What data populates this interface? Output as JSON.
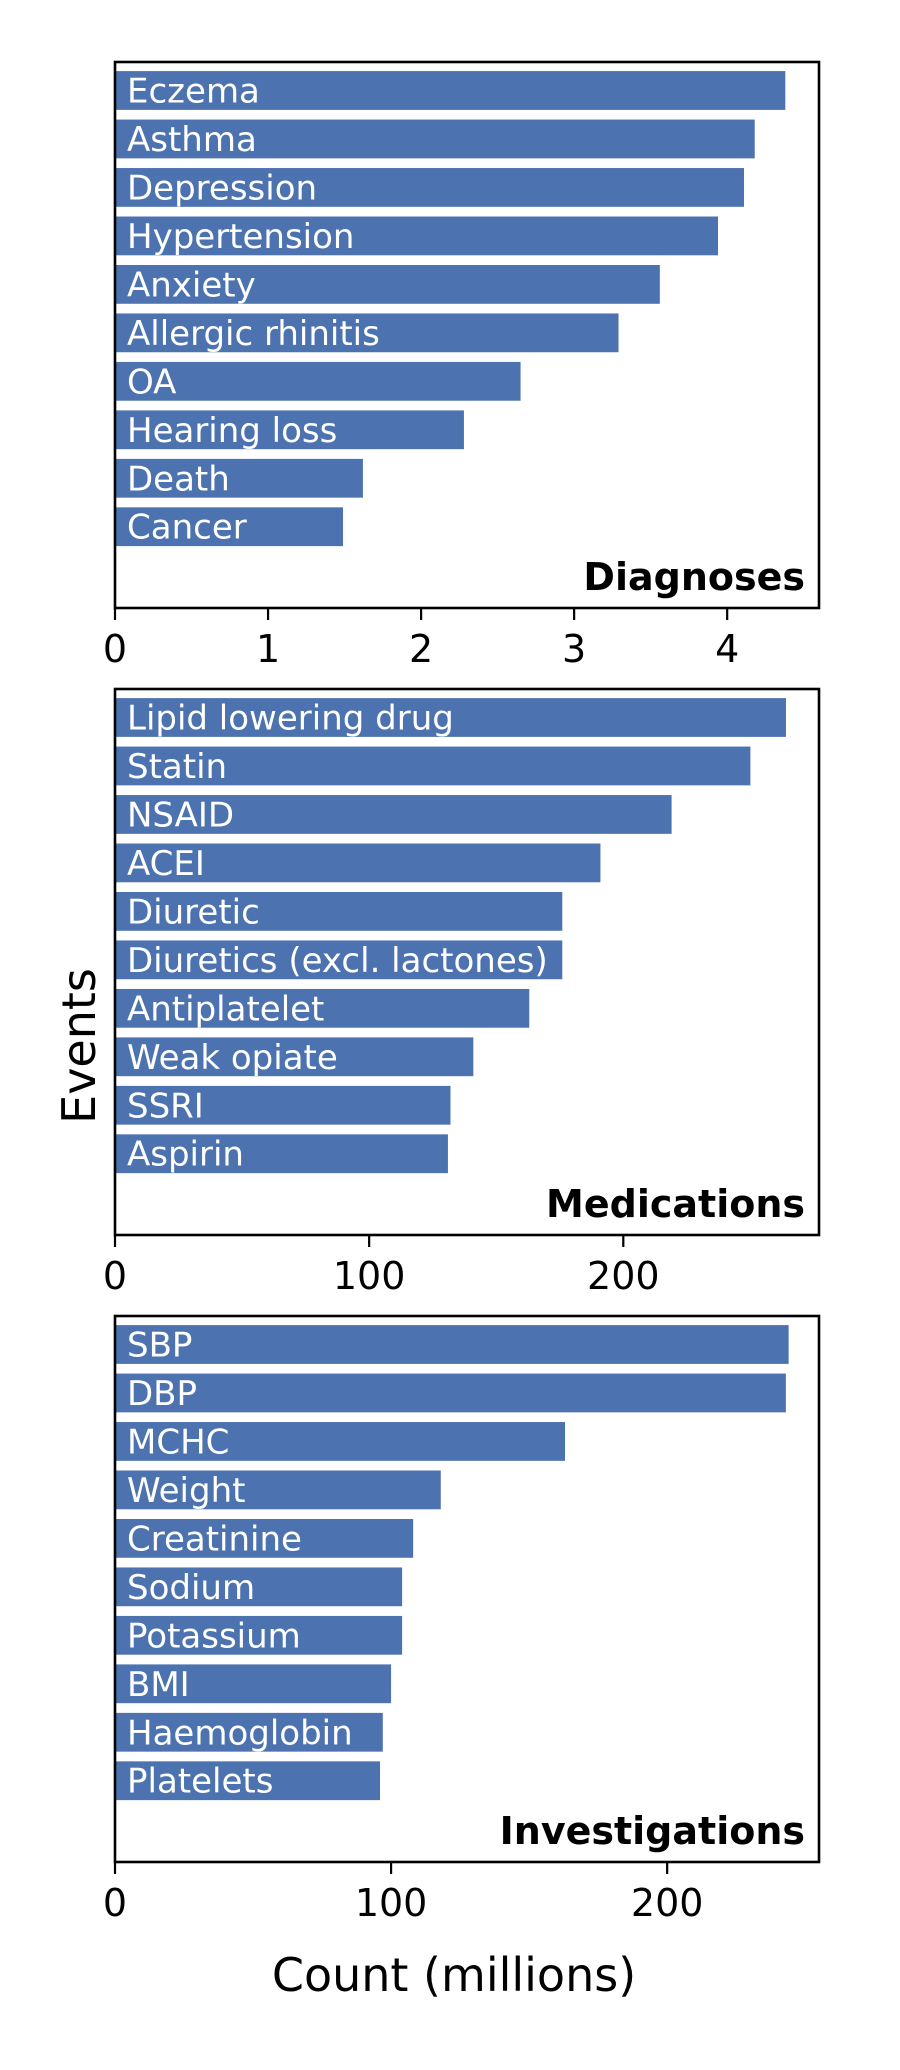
{
  "colors": {
    "bar": "#4c72b0"
  },
  "labels": {
    "ylabel": "Events",
    "xlabel": "Count (millions)"
  },
  "chart_data": [
    {
      "type": "bar",
      "orientation": "horizontal",
      "title": "Diagnoses",
      "categories": [
        "Eczema",
        "Asthma",
        "Depression",
        "Hypertension",
        "Anxiety",
        "Allergic rhinitis",
        "OA",
        "Hearing loss",
        "Death",
        "Cancer"
      ],
      "values": [
        4.38,
        4.18,
        4.11,
        3.94,
        3.56,
        3.29,
        2.65,
        2.28,
        1.62,
        1.49
      ],
      "xlim": [
        0,
        4.6
      ],
      "xticks": [
        0,
        1,
        2,
        3,
        4
      ],
      "xlabel": "",
      "ylabel": ""
    },
    {
      "type": "bar",
      "orientation": "horizontal",
      "title": "Medications",
      "categories": [
        "Lipid lowering drug",
        "Statin",
        "NSAID",
        "ACEI",
        "Diuretic",
        "Diuretics (excl. lactones)",
        "Antiplatelet",
        "Weak opiate",
        "SSRI",
        "Aspirin"
      ],
      "values": [
        264,
        250,
        219,
        191,
        176,
        176,
        163,
        141,
        132,
        131
      ],
      "xlim": [
        0,
        277
      ],
      "xticks": [
        0,
        100,
        200
      ],
      "xlabel": "",
      "ylabel": "Events"
    },
    {
      "type": "bar",
      "orientation": "horizontal",
      "title": "Investigations",
      "categories": [
        "SBP",
        "DBP",
        "MCHC",
        "Weight",
        "Creatinine",
        "Sodium",
        "Potassium",
        "BMI",
        "Haemoglobin",
        "Platelets"
      ],
      "values": [
        244,
        243,
        163,
        118,
        108,
        104,
        104,
        100,
        97,
        96
      ],
      "xlim": [
        0,
        255
      ],
      "xticks": [
        0,
        100,
        200
      ],
      "xlabel": "Count (millions)",
      "ylabel": ""
    }
  ]
}
